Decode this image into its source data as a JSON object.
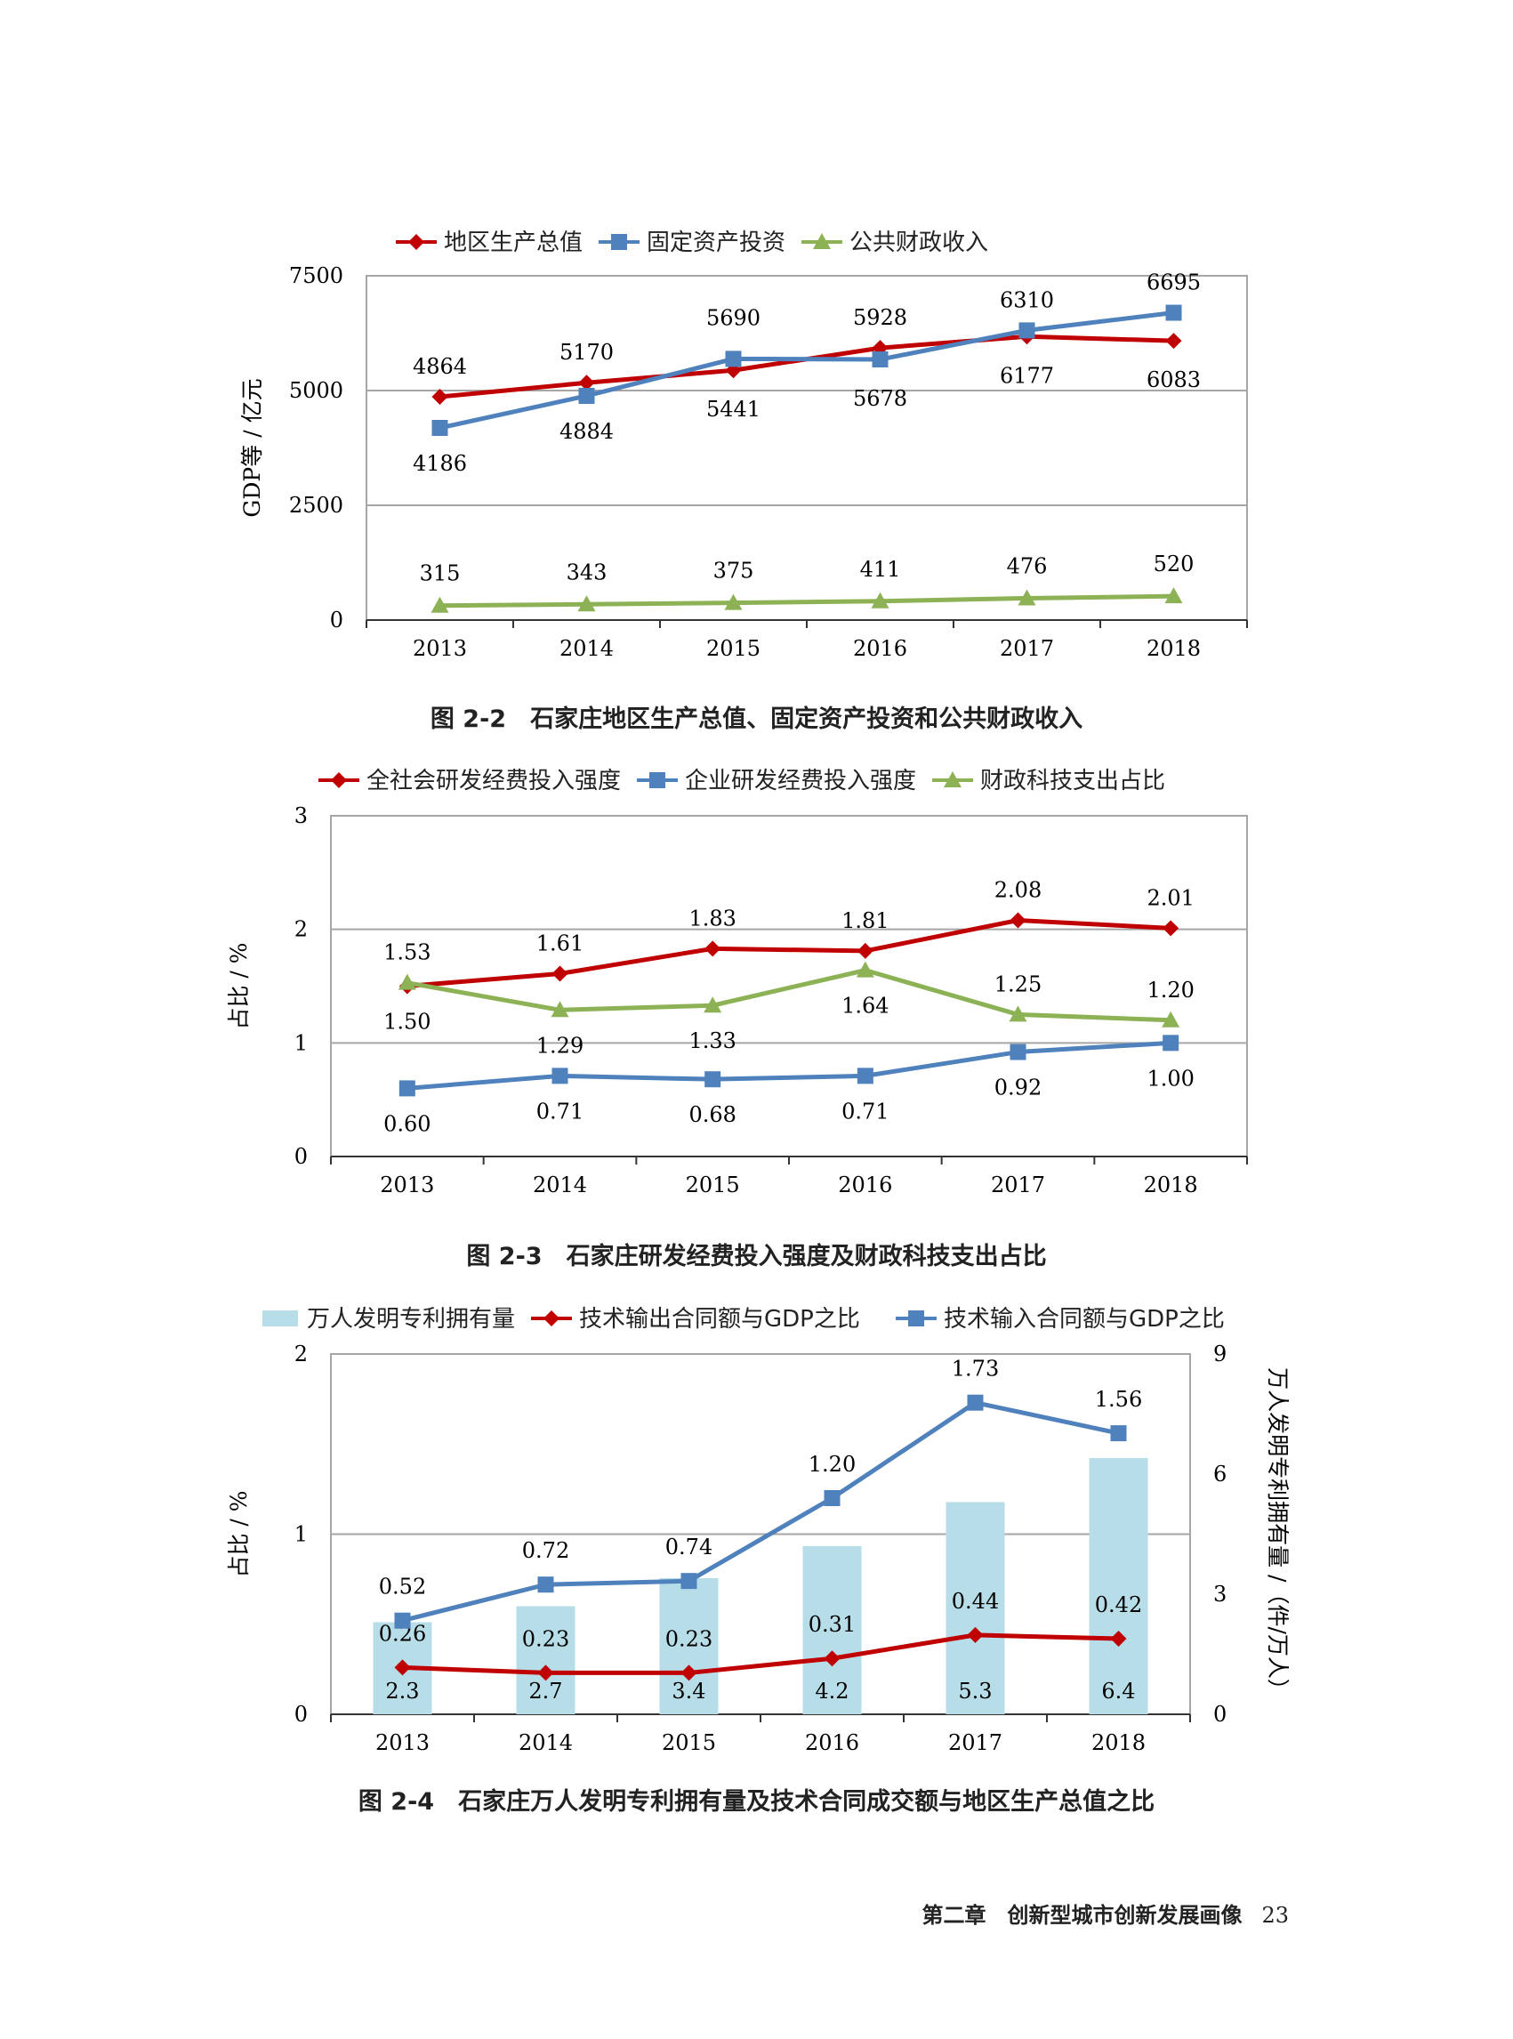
{
  "chart_data": [
    {
      "type": "line",
      "caption": "图 2-2　石家庄地区生产总值、固定资产投资和公共财政收入",
      "categories": [
        "2013",
        "2014",
        "2015",
        "2016",
        "2017",
        "2018"
      ],
      "ylabel": "GDP等 / 亿元",
      "ylim": [
        0,
        7500
      ],
      "yticks": [
        "0",
        "2500",
        "5000",
        "7500"
      ],
      "grid": true,
      "legend": "top",
      "series": [
        {
          "name": "地区生产总值",
          "values": [
            4864,
            5170,
            5441,
            5928,
            6177,
            6083
          ],
          "labels": [
            "4864",
            "5170",
            "5441",
            "5928",
            "6177",
            "6083"
          ],
          "color": "#c00000",
          "marker": "diamond"
        },
        {
          "name": "固定资产投资",
          "values": [
            4186,
            4884,
            5690,
            5678,
            6310,
            6695
          ],
          "labels": [
            "4186",
            "4884",
            "5690",
            "5678",
            "6310",
            "6695"
          ],
          "color": "#4f81bd",
          "marker": "square"
        },
        {
          "name": "公共财政收入",
          "values": [
            315,
            343,
            375,
            411,
            476,
            520
          ],
          "labels": [
            "315",
            "343",
            "375",
            "411",
            "476",
            "520"
          ],
          "color": "#8db255",
          "marker": "triangle"
        }
      ]
    },
    {
      "type": "line",
      "caption": "图 2-3　石家庄研发经费投入强度及财政科技支出占比",
      "categories": [
        "2013",
        "2014",
        "2015",
        "2016",
        "2017",
        "2018"
      ],
      "ylabel": "占比 / %",
      "ylim": [
        0,
        3
      ],
      "yticks": [
        "0",
        "1",
        "2",
        "3"
      ],
      "grid": true,
      "legend": "top",
      "series": [
        {
          "name": "全社会研发经费投入强度",
          "values": [
            1.5,
            1.61,
            1.83,
            1.81,
            2.08,
            2.01
          ],
          "labels": [
            "1.50",
            "1.61",
            "1.83",
            "1.81",
            "2.08",
            "2.01"
          ],
          "color": "#c00000",
          "marker": "diamond"
        },
        {
          "name": "企业研发经费投入强度",
          "values": [
            0.6,
            0.71,
            0.68,
            0.71,
            0.92,
            1.0
          ],
          "labels": [
            "0.60",
            "0.71",
            "0.68",
            "0.71",
            "0.92",
            "1.00"
          ],
          "color": "#4f81bd",
          "marker": "square"
        },
        {
          "name": "财政科技支出占比",
          "values": [
            1.53,
            1.29,
            1.33,
            1.64,
            1.25,
            1.2
          ],
          "labels": [
            "1.53",
            "1.29",
            "1.33",
            "1.64",
            "1.25",
            "1.20"
          ],
          "color": "#8db255",
          "marker": "triangle"
        }
      ]
    },
    {
      "type": "bar+line",
      "caption": "图 2-4　石家庄万人发明专利拥有量及技术合同成交额与地区生产总值之比",
      "categories": [
        "2013",
        "2014",
        "2015",
        "2016",
        "2017",
        "2018"
      ],
      "ylabel": "占比 / %",
      "ylabel_right": "万人发明专利拥有量 /（件/万人）",
      "ylim": [
        0,
        2
      ],
      "ylim_right": [
        0,
        9
      ],
      "yticks": [
        "0",
        "1",
        "2"
      ],
      "yticks_right": [
        "0",
        "3",
        "6",
        "9"
      ],
      "grid": true,
      "legend": "top",
      "bars": {
        "name": "万人发明专利拥有量",
        "values": [
          2.3,
          2.7,
          3.4,
          4.2,
          5.3,
          6.4
        ],
        "labels": [
          "2.3",
          "2.7",
          "3.4",
          "4.2",
          "5.3",
          "6.4"
        ],
        "color": "#b7dde8"
      },
      "series": [
        {
          "name": "技术输出合同额与GDP之比",
          "values": [
            0.26,
            0.23,
            0.23,
            0.31,
            0.44,
            0.42
          ],
          "labels": [
            "0.26",
            "0.23",
            "0.23",
            "0.31",
            "0.44",
            "0.42"
          ],
          "color": "#c00000",
          "marker": "diamond"
        },
        {
          "name": "技术输入合同额与GDP之比",
          "values": [
            0.52,
            0.72,
            0.74,
            1.2,
            1.73,
            1.56
          ],
          "labels": [
            "0.52",
            "0.72",
            "0.74",
            "1.20",
            "1.73",
            "1.56"
          ],
          "color": "#4f81bd",
          "marker": "square"
        }
      ]
    }
  ],
  "footer": {
    "chapter": "第二章　创新型城市创新发展画像",
    "page": "23"
  }
}
